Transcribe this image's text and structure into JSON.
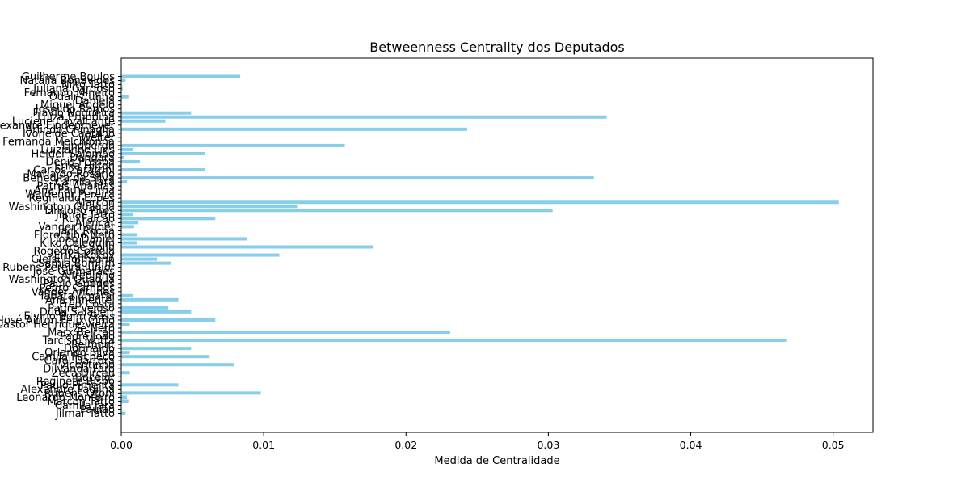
{
  "chart_data": {
    "type": "bar",
    "orientation": "horizontal",
    "title": "Betweenness Centrality dos Deputados",
    "xlabel": "Medida de Centralidade",
    "ylabel": "",
    "xlim": [
      0,
      0.0528
    ],
    "xticks": [
      0.0,
      0.01,
      0.02,
      0.03,
      0.04,
      0.05
    ],
    "xtick_labels": [
      "0.00",
      "0.01",
      "0.02",
      "0.03",
      "0.04",
      "0.05"
    ],
    "bar_color": "#87ceeb",
    "grid": false,
    "categories": [
      "Guilherme Boulos",
      "Natália Bonavides",
      "Nilto Tatto",
      "Juliana Cardoso",
      "Fernando Mineiro",
      "Odair Cunha",
      "Daniela",
      "Miguel Ângelo",
      "Joseildo Ramos",
      "Flávio Nogueira",
      "Luiza Erundina",
      "Luciene Cavalcante",
      "Alexandre Lindenmeyer",
      "Arlindo Chinaglia",
      "Ivoneide Caetano",
      "Welter",
      "Fernanda Melchionna",
      "Lindbergh",
      "Luizianne Lins",
      "Helder Salomão",
      "Dandara",
      "Dênis Pessoa",
      "Erika Hilton",
      "Carlos Zarattini",
      "Maria do Rosário",
      "Benedita da Silva",
      "Camila Jara",
      "Patrus Ananias",
      "Ana Paula Lima",
      "Waldenor Pereira",
      "Reginaldo Lopes",
      "Marcon",
      "Washington Quaquá",
      "Lindolfo Pires",
      "Jilmar Tatto",
      "Rui Falcão",
      "Alencar",
      "Vander Loubet",
      "Jack Rocha",
      "Florentino Neto",
      "João Daniel",
      "Kiko Celeguim",
      "Jorge Solla",
      "Rogério Correia",
      "Erika Kokay",
      "Gleisi Hoffmann",
      "Sâmia Bomfim",
      "Rubens Pereira Júnior",
      "José Guimarães",
      "Alfredinho",
      "Washington Quaquá",
      "Paulo Guedes",
      "Pedro Campos",
      "Vander Antunes",
      "Tabata Amaral",
      "Ana Pimentel",
      "Fred Costa",
      "Padre Veloso",
      "Duda Salabert",
      "Elvino Bohn Gass",
      "José Airton Félix Cirilo",
      "Castor Henrique Vieira",
      "Zé Neto",
      "Marx Beltrão",
      "Padre João",
      "Tarcísio Motta",
      "Reimont",
      "Dorinaldo",
      "Orlando Silva",
      "Camila Pacheco",
      "Carol Dartora",
      "Vicentinho",
      "Dilvanda Faro",
      "Zeca Dirceu",
      "Bacelar",
      "Reginete Bispo",
      "Paulo Pimenta",
      "Alexandre Padilha",
      "Rubens Otoni",
      "Leonardo Monteiro",
      "Marcon Tatto",
      "Camila Jara",
      "Paulão",
      "Jilmar Tatto"
    ],
    "values": [
      0.00835,
      0.0003,
      0.0,
      0.0001,
      0.0,
      0.0005,
      0.0,
      0.0,
      0.0,
      0.0049,
      0.0341,
      0.0031,
      0.0,
      0.0243,
      0.0,
      0.0,
      0.0,
      0.0157,
      0.0008,
      0.0059,
      0.0002,
      0.0013,
      0.0,
      0.0059,
      0.0,
      0.0332,
      0.0004,
      0.0,
      0.0,
      0.0,
      0.0,
      0.0504,
      0.0124,
      0.0303,
      0.0008,
      0.0066,
      0.0012,
      0.0009,
      0.0,
      0.0011,
      0.0088,
      0.0011,
      0.0177,
      0.0,
      0.0111,
      0.0025,
      0.0035,
      0.0,
      0.0,
      0.0,
      0.0,
      0.0,
      0.0,
      0.0,
      0.0008,
      0.004,
      0.0,
      0.0033,
      0.0049,
      0.0,
      0.0066,
      0.0006,
      0.0,
      0.0231,
      0.0,
      0.0467,
      0.0,
      0.0049,
      0.0006,
      0.0062,
      0.0,
      0.0079,
      0.0,
      0.0006,
      0.0,
      0.0,
      0.004,
      0.0,
      0.0098,
      0.0004,
      0.0005,
      0.0,
      0.0,
      0.0003
    ]
  }
}
